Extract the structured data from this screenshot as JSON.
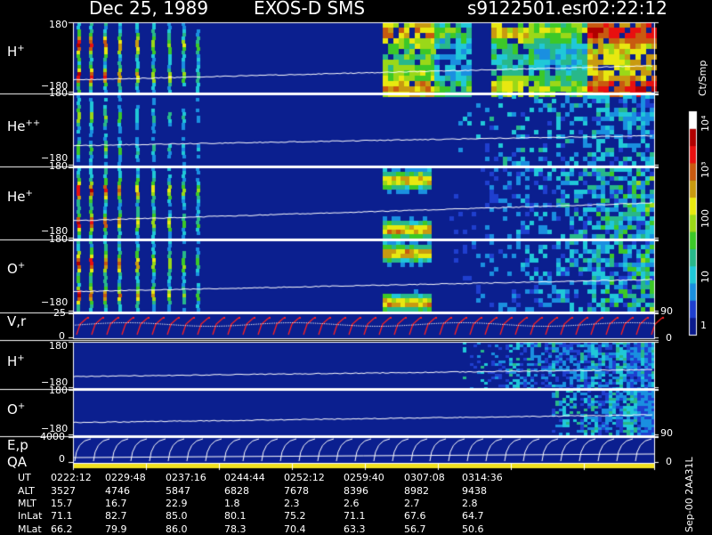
{
  "header": {
    "date": "Dec 25, 1989",
    "mission": "EXOS-D SMS",
    "file": "s9122501.esr",
    "time": "02:22:12"
  },
  "panels": [
    {
      "label_base": "H",
      "label_sup": "+",
      "ytop": "180",
      "ybot": "−180"
    },
    {
      "label_base": "He",
      "label_sup": "++",
      "ytop": "180",
      "ybot": "−180"
    },
    {
      "label_base": "He",
      "label_sup": "+",
      "ytop": "180",
      "ybot": "−180"
    },
    {
      "label_base": "O",
      "label_sup": "+",
      "ytop": "180",
      "ybot": "−180"
    },
    {
      "label_base": "V,r",
      "label_sup": "",
      "ytop": "25",
      "ybot": "0",
      "rtop": "90",
      "rbot": "0"
    },
    {
      "label_base": "H",
      "label_sup": "+",
      "ytop": "180",
      "ybot": "−180"
    },
    {
      "label_base": "O",
      "label_sup": "+",
      "ytop": "180",
      "ybot": "−180"
    },
    {
      "label_base": "E,p",
      "label_sup": "",
      "label2": "QA",
      "ytop": "4000",
      "ybot": "0",
      "rtop": "90",
      "rbot": "0"
    }
  ],
  "colorbar": {
    "unit": "Ct/Smp",
    "labels": [
      "1",
      "10",
      "100",
      "10³",
      "10⁴"
    ],
    "colors": [
      "#0a1a8c",
      "#1f3fcf",
      "#1a8fe0",
      "#20c8d8",
      "#28b88a",
      "#3cc828",
      "#9ad818",
      "#e8e810",
      "#c89a10",
      "#c85a10",
      "#e81010",
      "#b00000",
      "#ffffff"
    ]
  },
  "footer": {
    "rows": [
      {
        "name": "UT",
        "values": [
          "0222:12",
          "0229:48",
          "0237:16",
          "0244:44",
          "0252:12",
          "0259:40",
          "0307:08",
          "0314:36"
        ]
      },
      {
        "name": "ALT",
        "values": [
          "3527",
          "4746",
          "5847",
          "6828",
          "7678",
          "8396",
          "8982",
          "9438"
        ]
      },
      {
        "name": "MLT",
        "values": [
          "15.7",
          "16.7",
          "22.9",
          "1.8",
          "2.3",
          "2.6",
          "2.7",
          "2.8"
        ]
      },
      {
        "name": "InLat",
        "values": [
          "71.1",
          "82.7",
          "85.0",
          "80.1",
          "75.2",
          "71.1",
          "67.6",
          "64.7"
        ]
      },
      {
        "name": "MLat",
        "values": [
          "66.2",
          "79.9",
          "86.0",
          "78.3",
          "70.4",
          "63.3",
          "56.7",
          "50.6"
        ]
      }
    ],
    "version": "Sep-00  2AA31L"
  },
  "chart_data": {
    "type": "heatmap",
    "title": "Dec 25, 1989   EXOS-D SMS",
    "x_axis_times": [
      "0222:12",
      "0229:48",
      "0237:16",
      "0244:44",
      "0252:12",
      "0259:40",
      "0307:08",
      "0314:36"
    ],
    "colorscale_range": [
      1,
      10000
    ],
    "colorscale_log": true,
    "colorbar_unit": "Ct/Smp",
    "panels": [
      {
        "name": "H+",
        "ylim": [
          -180,
          180
        ]
      },
      {
        "name": "He++",
        "ylim": [
          -180,
          180
        ]
      },
      {
        "name": "He+",
        "ylim": [
          -180,
          180
        ]
      },
      {
        "name": "O+",
        "ylim": [
          -180,
          180
        ]
      },
      {
        "name": "V,r",
        "ylim": [
          0,
          25
        ],
        "right_ylim": [
          0,
          90
        ]
      },
      {
        "name": "H+",
        "ylim": [
          -180,
          180
        ]
      },
      {
        "name": "O+",
        "ylim": [
          -180,
          180
        ]
      },
      {
        "name": "E,p",
        "ylim": [
          0,
          4000
        ],
        "right_ylim": [
          0,
          90
        ]
      },
      {
        "name": "QA"
      }
    ]
  }
}
